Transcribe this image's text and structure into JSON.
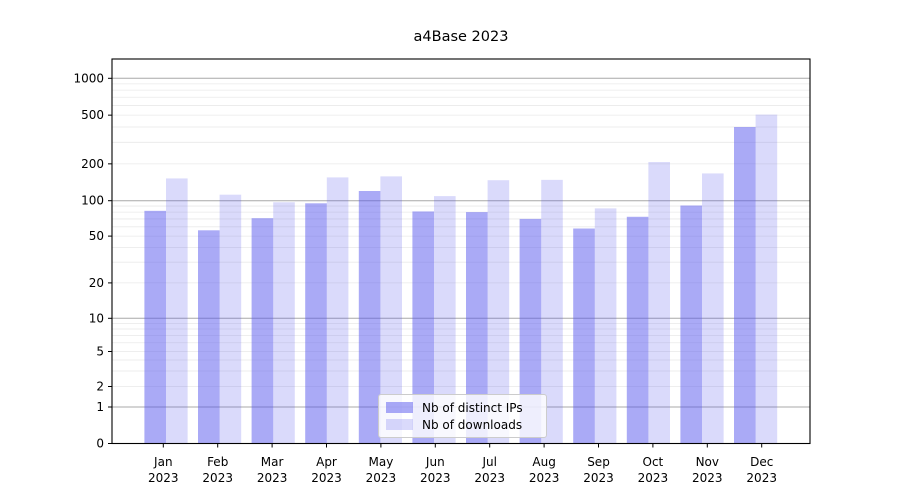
{
  "chart_data": {
    "type": "bar",
    "title": "a4Base 2023",
    "categories": [
      "Jan",
      "Feb",
      "Mar",
      "Apr",
      "May",
      "Jun",
      "Jul",
      "Aug",
      "Sep",
      "Oct",
      "Nov",
      "Dec"
    ],
    "year_label": "2023",
    "series": [
      {
        "name": "Nb of distinct IPs",
        "color": "#5555ee",
        "opacity": 0.5,
        "values": [
          82,
          56,
          71,
          95,
          120,
          81,
          80,
          70,
          58,
          73,
          91,
          400
        ]
      },
      {
        "name": "Nb of downloads",
        "color": "#5555ee",
        "opacity": 0.22,
        "values": [
          152,
          112,
          97,
          155,
          158,
          109,
          147,
          148,
          86,
          207,
          167,
          505
        ]
      }
    ],
    "xlabel": "",
    "ylabel": "",
    "yscale": "symlog",
    "y_ticks": [
      0,
      1,
      2,
      5,
      10,
      20,
      50,
      100,
      200,
      500,
      1000
    ],
    "ylim": [
      0,
      1500
    ],
    "grid": "horizontal major and minor log gridlines",
    "legend_position": "lower center",
    "colors": {
      "grid_major": "#a8a8a8",
      "grid_minor": "#e9e9e9",
      "axis": "#000000",
      "text": "#000000",
      "background": "#ffffff"
    }
  }
}
